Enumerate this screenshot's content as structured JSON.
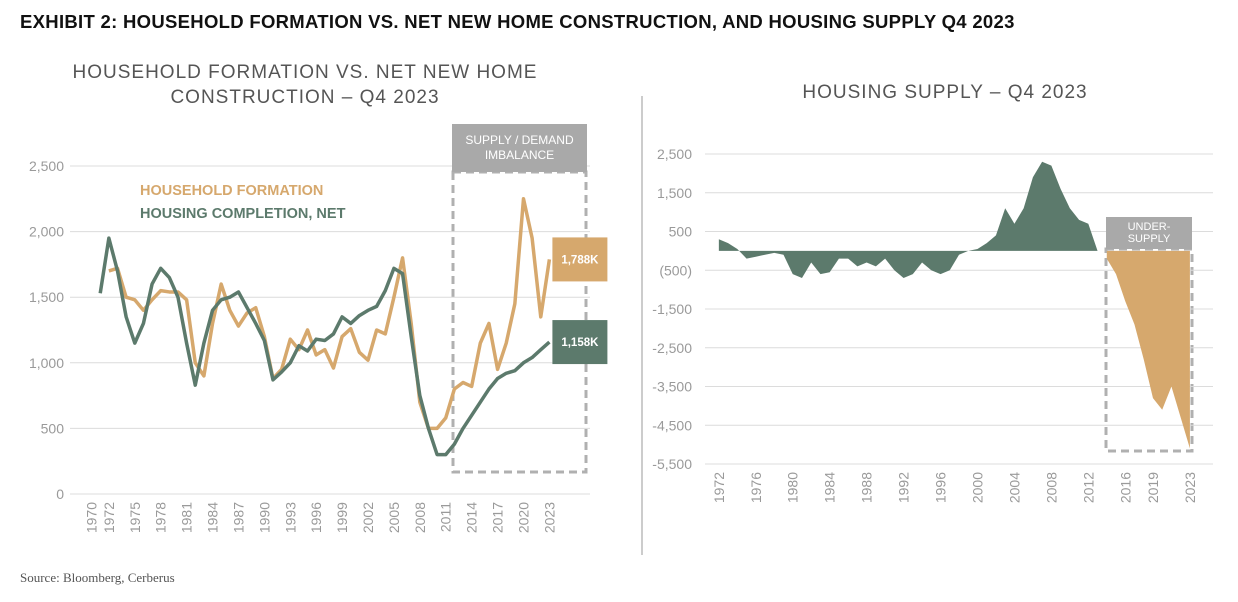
{
  "header": {
    "title": "EXHIBIT 2: HOUSEHOLD FORMATION VS. NET NEW HOME CONSTRUCTION, AND HOUSING SUPPLY Q4 2023"
  },
  "source": "Source:  Bloomberg, Cerberus",
  "chart_data": [
    {
      "type": "line",
      "title": "HOUSEHOLD FORMATION VS. NET NEW HOME CONSTRUCTION – Q4 2023",
      "annotation": "SUPPLY / DEMAND IMBALANCE",
      "x": [
        1971,
        1972,
        1973,
        1974,
        1975,
        1976,
        1977,
        1978,
        1979,
        1980,
        1981,
        1982,
        1983,
        1984,
        1985,
        1986,
        1987,
        1988,
        1989,
        1990,
        1991,
        1992,
        1993,
        1994,
        1995,
        1996,
        1997,
        1998,
        1999,
        2000,
        2001,
        2002,
        2003,
        2004,
        2005,
        2006,
        2007,
        2008,
        2009,
        2010,
        2011,
        2012,
        2013,
        2014,
        2015,
        2016,
        2017,
        2018,
        2019,
        2020,
        2021,
        2022,
        2023
      ],
      "series": [
        {
          "name": "HOUSEHOLD FORMATION",
          "color": "#d6a86d",
          "values": [
            null,
            1700,
            1720,
            1500,
            1480,
            1400,
            1480,
            1550,
            1540,
            1540,
            1480,
            1000,
            900,
            1300,
            1600,
            1400,
            1280,
            1380,
            1420,
            1200,
            880,
            950,
            1180,
            1100,
            1250,
            1060,
            1100,
            960,
            1200,
            1260,
            1080,
            1020,
            1250,
            1220,
            1500,
            1800,
            1300,
            700,
            500,
            500,
            580,
            800,
            850,
            820,
            1150,
            1300,
            950,
            1150,
            1450,
            2250,
            1950,
            1350,
            1788
          ],
          "value_labels": [
            null,
            null,
            null,
            null,
            null,
            null,
            null,
            null,
            null,
            null,
            null,
            null,
            null,
            null,
            null,
            null,
            null,
            null,
            null,
            null,
            null,
            null,
            null,
            null,
            null,
            null,
            null,
            null,
            null,
            null,
            null,
            null,
            null,
            null,
            null,
            null,
            null,
            null,
            null,
            null,
            null,
            null,
            null,
            null,
            null,
            null,
            null,
            null,
            null,
            null,
            null,
            null,
            "1,788K"
          ]
        },
        {
          "name": "HOUSING COMPLETION, NET",
          "color": "#5c7a6c",
          "values": [
            1530,
            1950,
            1700,
            1350,
            1150,
            1300,
            1600,
            1720,
            1650,
            1500,
            1150,
            830,
            1150,
            1400,
            1480,
            1500,
            1540,
            1420,
            1300,
            1170,
            870,
            930,
            1000,
            1130,
            1090,
            1180,
            1170,
            1220,
            1350,
            1300,
            1360,
            1400,
            1430,
            1550,
            1720,
            1680,
            1200,
            750,
            500,
            300,
            300,
            380,
            500,
            600,
            700,
            800,
            880,
            920,
            940,
            1000,
            1040,
            1100,
            1158
          ],
          "value_labels": [
            null,
            null,
            null,
            null,
            null,
            null,
            null,
            null,
            null,
            null,
            null,
            null,
            null,
            null,
            null,
            null,
            null,
            null,
            null,
            null,
            null,
            null,
            null,
            null,
            null,
            null,
            null,
            null,
            null,
            null,
            null,
            null,
            null,
            null,
            null,
            null,
            null,
            null,
            null,
            null,
            null,
            null,
            null,
            null,
            null,
            null,
            null,
            null,
            null,
            null,
            null,
            null,
            "1,158K"
          ]
        }
      ],
      "xlim": [
        1967.5,
        2027.7
      ],
      "xticks": [
        1970,
        1972,
        1975,
        1978,
        1981,
        1984,
        1987,
        1990,
        1993,
        1996,
        1999,
        2002,
        2005,
        2008,
        2011,
        2014,
        2017,
        2020,
        2023
      ],
      "ylim": [
        0,
        2500
      ],
      "yticks": [
        0,
        500,
        {
          "value": 1000,
          "label": "1,000"
        },
        {
          "value": 1500,
          "label": "1,500"
        },
        {
          "value": 2000,
          "label": "2,000"
        },
        {
          "value": 2500,
          "label": "2,500"
        }
      ],
      "grid": true
    },
    {
      "type": "area",
      "title": "HOUSING SUPPLY – Q4 2023",
      "annotation": "UNDER-SUPPLY",
      "x": [
        1972,
        1973,
        1974,
        1975,
        1976,
        1977,
        1978,
        1979,
        1980,
        1981,
        1982,
        1983,
        1984,
        1985,
        1986,
        1987,
        1988,
        1989,
        1990,
        1991,
        1992,
        1993,
        1994,
        1995,
        1996,
        1997,
        1998,
        1999,
        2000,
        2001,
        2002,
        2003,
        2004,
        2005,
        2006,
        2007,
        2008,
        2009,
        2010,
        2011,
        2012,
        2013,
        2014,
        2015,
        2016,
        2017,
        2018,
        2019,
        2020,
        2021,
        2022,
        2023
      ],
      "series": [
        {
          "color": "#5c7a6c",
          "values": [
            300,
            200,
            50,
            -200,
            -150,
            -100,
            -50,
            -100,
            -600,
            -700,
            -300,
            -600,
            -550,
            -200,
            -200,
            -400,
            -300,
            -400,
            -200,
            -500,
            -700,
            -600,
            -300,
            -500,
            -600,
            -500,
            -100,
            0,
            50,
            200,
            400,
            1100,
            700,
            1100,
            1900,
            2300,
            2200,
            1600,
            1100,
            800,
            700,
            0,
            null,
            null,
            null,
            null,
            null,
            null,
            null,
            null,
            null,
            null
          ]
        },
        {
          "color": "#d6a86d",
          "values": [
            null,
            null,
            null,
            null,
            null,
            null,
            null,
            null,
            null,
            null,
            null,
            null,
            null,
            null,
            null,
            null,
            null,
            null,
            null,
            null,
            null,
            null,
            null,
            null,
            null,
            null,
            null,
            null,
            null,
            null,
            null,
            null,
            null,
            null,
            null,
            null,
            null,
            null,
            null,
            null,
            null,
            null,
            -200,
            -600,
            -1300,
            -1900,
            -2800,
            -3800,
            -4100,
            -3500,
            -4300,
            -5100
          ]
        }
      ],
      "xlim": [
        1970.5,
        2025.5
      ],
      "xticks": [
        1972,
        1976,
        1980,
        1984,
        1988,
        1992,
        1996,
        2000,
        2004,
        2008,
        2012,
        2016,
        2019,
        2023
      ],
      "ylim": [
        -5500,
        2500
      ],
      "yticks": [
        {
          "value": 2500,
          "label": "2,500"
        },
        {
          "value": 1500,
          "label": "1,500"
        },
        500,
        {
          "value": -500,
          "label": "(500)"
        },
        {
          "value": -1500,
          "label": "-1,500"
        },
        {
          "value": -2500,
          "label": "-2,500"
        },
        {
          "value": -3500,
          "label": "-3,500"
        },
        {
          "value": -4500,
          "label": "-4,500"
        },
        {
          "value": -5500,
          "label": "-5,500"
        }
      ],
      "grid": true
    }
  ]
}
